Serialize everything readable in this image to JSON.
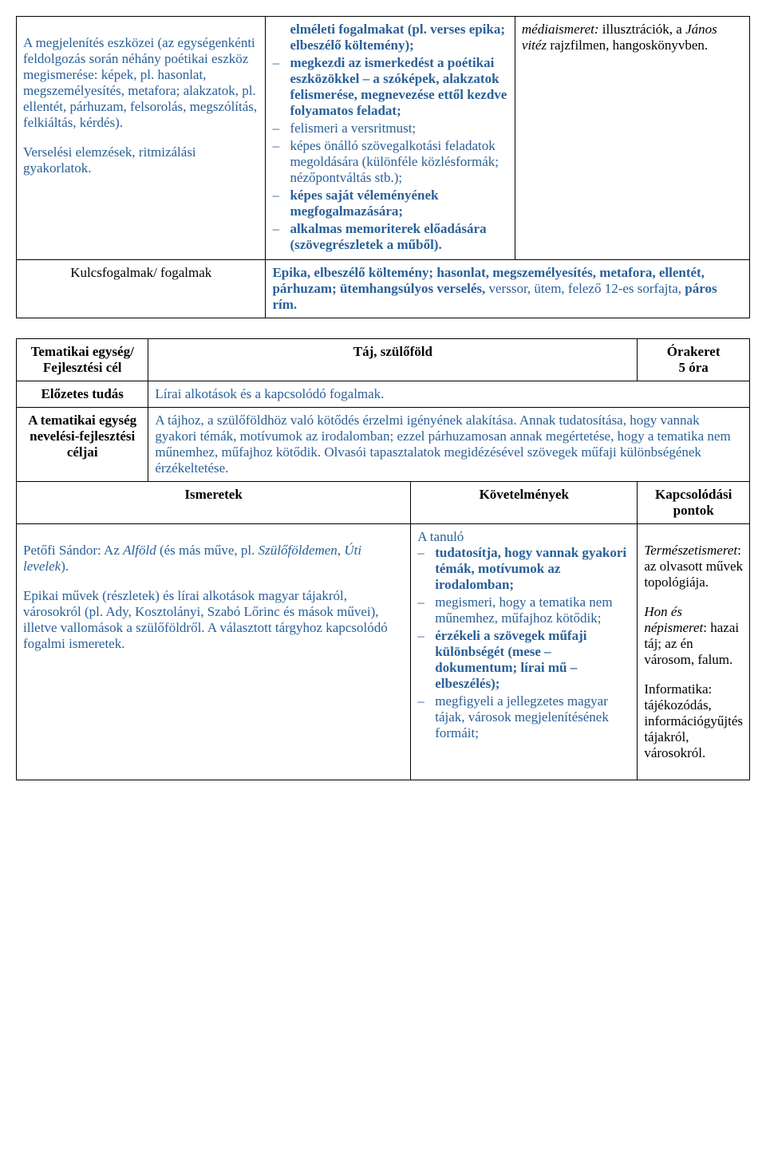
{
  "colors": {
    "blue": "#2a6099",
    "black": "#000000",
    "background": "#ffffff",
    "border": "#000000"
  },
  "typography": {
    "font_family": "Times New Roman",
    "font_size_pt": 13
  },
  "table1": {
    "row1": {
      "col1_p1": "A megjelenítés eszközei (az egységenkénti feldolgozás során néhány poétikai eszköz megismerése: képek, pl. hasonlat, megszemélyesítés, metafora; alakzatok, pl. ellentét, párhuzam, felsorolás, megszólítás, felkiáltás, kérdés).",
      "col1_p2": "Verselési elemzések, ritmizálási gyakorlatok.",
      "col2_items": [
        {
          "text": "elméleti fogalmakat (pl. verses epika; elbeszélő költemény);",
          "bold": true,
          "hasDash": false
        },
        {
          "text": "megkezdi az ismerkedést a poétikai eszközökkel – a szóképek, alakzatok felismerése, megnevezése ettől kezdve folyamatos feladat;",
          "bold": true,
          "hasDash": true
        },
        {
          "text": "felismeri a versritmust;",
          "bold": false,
          "hasDash": true
        },
        {
          "text": "képes önálló szövegalkotási feladatok megoldására (különféle közlésformák; nézőpontváltás stb.);",
          "bold": false,
          "hasDash": true
        },
        {
          "text": "képes saját véleményének megfogalmazására;",
          "bold": true,
          "hasDash": true
        },
        {
          "text": "alkalmas memoriterek előadására (szövegrészletek a műből).",
          "bold": true,
          "hasDash": true
        }
      ],
      "col3_label": "médiaismeret:",
      "col3_pre": " illusztrációk, a ",
      "col3_italic": "János vitéz",
      "col3_post": " rajzfilmen, hangoskönyvben."
    },
    "row2": {
      "label": "Kulcsfogalmak/ fogalmak",
      "content_bold1": "Epika, elbeszélő költemény; hasonlat, megszemélyesítés, metafora, ellentét, párhuzam; ütemhangsúlyos verselés,",
      "content_plain": " verssor, ütem, felező 12-es sorfajta, ",
      "content_bold2": "páros rím."
    }
  },
  "table2": {
    "row1": {
      "label": "Tematikai egység/ Fejlesztési cél",
      "title": "Táj, szülőföld",
      "hours_label": "Órakeret",
      "hours_value": "5 óra"
    },
    "row2": {
      "label": "Előzetes tudás",
      "content": "Lírai alkotások és a kapcsolódó fogalmak."
    },
    "row3": {
      "label": "A tematikai egység nevelési-fejlesztési céljai",
      "content": "A tájhoz, a szülőföldhöz való kötődés érzelmi igényének alakítása. Annak tudatosítása, hogy vannak gyakori témák, motívumok az irodalomban; ezzel párhuzamosan annak megértetése, hogy a tematika nem műnemhez, műfajhoz kötődik. Olvasói tapasztalatok megidézésével szövegek műfaji különbségének érzékeltetése."
    },
    "header": {
      "c1": "Ismeretek",
      "c2": "Követelmények",
      "c3": "Kapcsolódási pontok"
    },
    "row4": {
      "col1_p1_pre": "Petőfi Sándor: Az ",
      "col1_p1_i1": "Alföld",
      "col1_p1_mid": " (és más műve, pl. ",
      "col1_p1_i2": "Szülőföldemen",
      "col1_p1_mid2": ", ",
      "col1_p1_i3": "Úti levelek",
      "col1_p1_post": ").",
      "col1_p2": "Epikai művek (részletek) és lírai alkotások magyar tájakról, városokról (pl. Ady, Kosztolányi, Szabó Lőrinc és mások művei), illetve vallomások a szülőföldről. A választott tárgyhoz kapcsolódó fogalmi ismeretek.",
      "col2_lead": "A tanuló",
      "col2_items": [
        {
          "text": "tudatosítja, hogy vannak gyakori témák, motívumok az irodalomban;",
          "bold": true
        },
        {
          "text": "megismeri, hogy a tematika nem műnemhez, műfajhoz kötődik;",
          "bold": false
        },
        {
          "text": "érzékeli a szövegek műfaji különbségét (mese – dokumentum; lírai mű – elbeszélés);",
          "bold": true
        },
        {
          "text": "megfigyeli a jellegzetes magyar tájak, városok megjelenítésének formáit;",
          "bold": false
        }
      ],
      "col3_l1_i": "Természetismeret",
      "col3_l1": ": az olvasott művek topológiája.",
      "col3_l2_i": "Hon és népismeret",
      "col3_l2": ": hazai táj; az én városom, falum.",
      "col3_l3": "Informatika: tájékozódás, információgyűjtés tájakról, városokról."
    }
  }
}
